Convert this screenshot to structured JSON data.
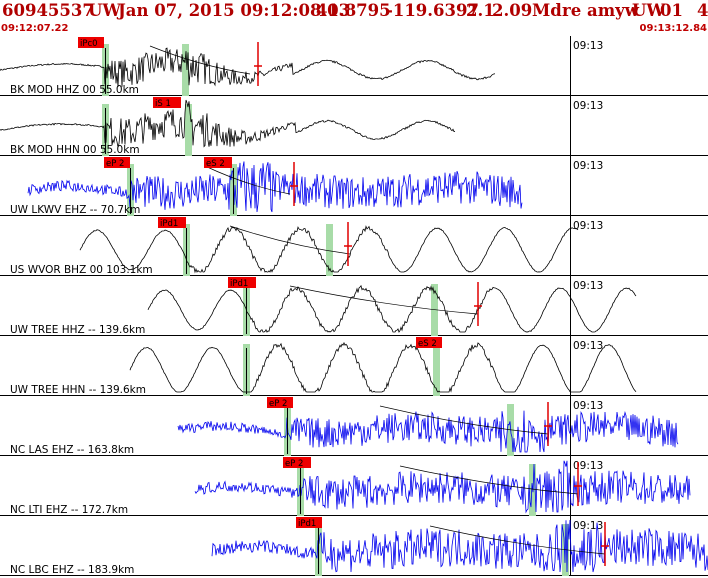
{
  "header": {
    "event_id": "60945537",
    "network": "UW",
    "datetime": "Jan 07, 2015 09:12:08.03",
    "latitude": "41.8795",
    "longitude": "-119.6397",
    "magnitude": "2.1",
    "mag_value": "2.09",
    "mag_type": "Md",
    "status": "re",
    "analyst": "amyw",
    "source": "UW",
    "version": "01",
    "page": "4"
  },
  "start_time": "09:12:07.22",
  "end_time": "09:13:12.84",
  "tick_label": "09:13",
  "colors": {
    "header": "#b00000",
    "trace_black": "#000000",
    "trace_blue": "#0000ee",
    "pick_flag": "#ee0000",
    "pick_window": "#a8dca8"
  },
  "traces": [
    {
      "label": "BK MOD HHZ 00 55.0km",
      "color": "black",
      "picks": [
        {
          "text": "iPc0"
        }
      ]
    },
    {
      "label": "BK MOD HHN 00 55.0km",
      "color": "black",
      "picks": [
        {
          "text": "iS 1"
        }
      ]
    },
    {
      "label": "UW LKWV EHZ -- 70.7km",
      "color": "blue",
      "picks": [
        {
          "text": "eP 2"
        },
        {
          "text": "eS 2"
        }
      ]
    },
    {
      "label": "US WVOR BHZ 00 103.1km",
      "color": "black",
      "picks": [
        {
          "text": "iPd1"
        }
      ]
    },
    {
      "label": "UW TREE HHZ -- 139.6km",
      "color": "black",
      "picks": [
        {
          "text": "iPd1"
        }
      ]
    },
    {
      "label": "UW TREE HHN -- 139.6km",
      "color": "black",
      "picks": [
        {
          "text": "eS 2"
        }
      ]
    },
    {
      "label": "NC LAS EHZ -- 163.8km",
      "color": "blue",
      "picks": [
        {
          "text": "eP 2"
        }
      ]
    },
    {
      "label": "NC LTI EHZ -- 172.7km",
      "color": "blue",
      "picks": [
        {
          "text": "eP 2"
        }
      ]
    },
    {
      "label": "NC LBC EHZ -- 183.9km",
      "color": "blue",
      "picks": [
        {
          "text": "iPd1"
        }
      ]
    }
  ]
}
